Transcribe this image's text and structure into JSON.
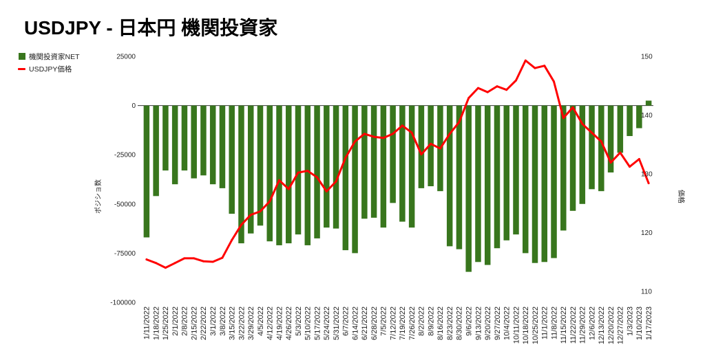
{
  "chart_data": {
    "type": "bar",
    "title": "USDJPY - 日本円 機関投資家",
    "legend": "top-left",
    "grid": false,
    "categories": [
      "1/11/2022",
      "1/18/2022",
      "1/25/2022",
      "2/1/2022",
      "2/8/2022",
      "2/15/2022",
      "2/22/2022",
      "3/1/2022",
      "3/8/2022",
      "3/15/2022",
      "3/22/2022",
      "3/29/2022",
      "4/5/2022",
      "4/12/2022",
      "4/19/2022",
      "4/26/2022",
      "5/3/2022",
      "5/10/2022",
      "5/17/2022",
      "5/24/2022",
      "5/31/2022",
      "6/7/2022",
      "6/14/2022",
      "6/21/2022",
      "6/28/2022",
      "7/5/2022",
      "7/12/2022",
      "7/19/2022",
      "7/26/2022",
      "8/2/2022",
      "8/9/2022",
      "8/16/2022",
      "8/23/2022",
      "8/30/2022",
      "9/6/2022",
      "9/13/2022",
      "9/20/2022",
      "9/27/2022",
      "10/4/2022",
      "10/11/2022",
      "10/18/2022",
      "10/25/2022",
      "11/1/2022",
      "11/8/2022",
      "11/15/2022",
      "11/22/2022",
      "11/29/2022",
      "12/6/2022",
      "12/13/2022",
      "12/20/2022",
      "12/27/2022",
      "1/3/2023",
      "1/10/2023",
      "1/17/2023"
    ],
    "series": [
      {
        "name": "機関投資家NET",
        "type": "bar",
        "axis": "left",
        "color": "#38761d",
        "values": [
          -67000,
          -46000,
          -33000,
          -40000,
          -33000,
          -37000,
          -35500,
          -40000,
          -42000,
          -55000,
          -70000,
          -65000,
          -61000,
          -69000,
          -71000,
          -70000,
          -65500,
          -71000,
          -67500,
          -62000,
          -62500,
          -73500,
          -75000,
          -57500,
          -57000,
          -62000,
          -49500,
          -59000,
          -62000,
          -42000,
          -41000,
          -43500,
          -71500,
          -73000,
          -84500,
          -79500,
          -81000,
          -72500,
          -68500,
          -65500,
          -75000,
          -80000,
          -79500,
          -77500,
          -63500,
          -53500,
          -50000,
          -42500,
          -43500,
          -34000,
          -24000,
          -15500,
          -11500,
          2500
        ]
      },
      {
        "name": "USDJPY価格",
        "type": "line",
        "axis": "right",
        "color": "#ff0000",
        "values": [
          115.4,
          114.8,
          114.0,
          114.8,
          115.6,
          115.6,
          115.1,
          115.0,
          115.7,
          118.7,
          121.3,
          123.0,
          123.6,
          125.3,
          128.9,
          127.4,
          130.2,
          130.5,
          129.4,
          127.0,
          128.7,
          132.7,
          135.5,
          136.8,
          136.3,
          136.1,
          136.8,
          138.2,
          137.0,
          133.3,
          135.1,
          134.3,
          136.8,
          138.8,
          142.9,
          144.6,
          143.9,
          144.9,
          144.3,
          145.9,
          149.3,
          148.0,
          148.4,
          145.7,
          139.5,
          141.3,
          138.5,
          137.0,
          135.5,
          131.9,
          133.6,
          131.2,
          132.5,
          128.4
        ]
      }
    ],
    "ylabel": "ポジショ数",
    "ylim": [
      -100000,
      25000
    ],
    "yticks": [
      25000,
      0,
      -25000,
      -50000,
      -75000,
      -100000
    ],
    "y2label": "価格",
    "y2lim": [
      108.1,
      150
    ],
    "y2ticks": [
      150,
      140,
      130,
      120,
      110
    ]
  }
}
